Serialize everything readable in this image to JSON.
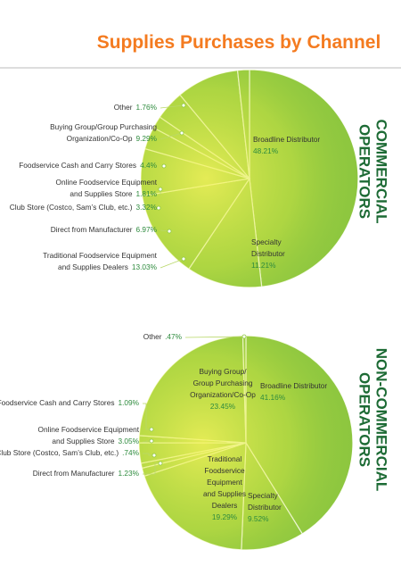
{
  "title": "Supplies  Purchases by Channel",
  "chart_data": [
    {
      "type": "pie",
      "label": [
        "COMMERCIAL",
        "OPERATORS"
      ],
      "color": "#8cc63f",
      "categories": [
        [
          "Broadline Distributor"
        ],
        [
          "Specialty",
          "Distributor"
        ],
        [
          "Traditional Foodservice Equipment",
          "and Supplies Dealers"
        ],
        [
          "Direct from Manufacturer"
        ],
        [
          "Club Store (Costco, Sam’s Club, etc.)"
        ],
        [
          "Online Foodservice Equipment",
          "and Supplies Store"
        ],
        [
          "Foodservice Cash and Carry Stores"
        ],
        [
          "Buying Group/Group Purchasing",
          "Organization/Co-Op"
        ],
        [
          "Other"
        ]
      ],
      "values": [
        48.21,
        11.21,
        13.03,
        6.97,
        3.32,
        1.81,
        4.4,
        9.29,
        1.76
      ],
      "value_labels": [
        "48.21%",
        "11.21%",
        "13.03%",
        "6.97%",
        "3.32%",
        "1.81%",
        "4.4%",
        "9.29%",
        "1.76%"
      ]
    },
    {
      "type": "pie",
      "label": [
        "NON-COMMERCIAL",
        "OPERATORS"
      ],
      "color": "#8cc63f",
      "categories": [
        [
          "Broadline Distributor"
        ],
        [
          "Specialty",
          "Distributor"
        ],
        [
          "Traditional",
          "Foodservice",
          "Equipment",
          "and Supplies",
          "Dealers"
        ],
        [
          "Direct from Manufacturer"
        ],
        [
          "Club Store (Costco, Sam’s Club, etc.)"
        ],
        [
          "Online Foodservice Equipment",
          "and Supplies Store"
        ],
        [
          "Foodservice Cash and Carry Stores"
        ],
        [
          "Buying Group/",
          "Group Purchasing",
          "Organization/Co-Op"
        ],
        [
          "Other"
        ]
      ],
      "values": [
        41.16,
        9.52,
        19.29,
        1.23,
        0.74,
        3.05,
        1.09,
        23.45,
        0.47
      ],
      "value_labels": [
        "41.16%",
        "9.52%",
        "19.29%",
        "1.23%",
        ".74%",
        "3.05%",
        "1.09%",
        "23.45%",
        ".47%"
      ]
    }
  ]
}
